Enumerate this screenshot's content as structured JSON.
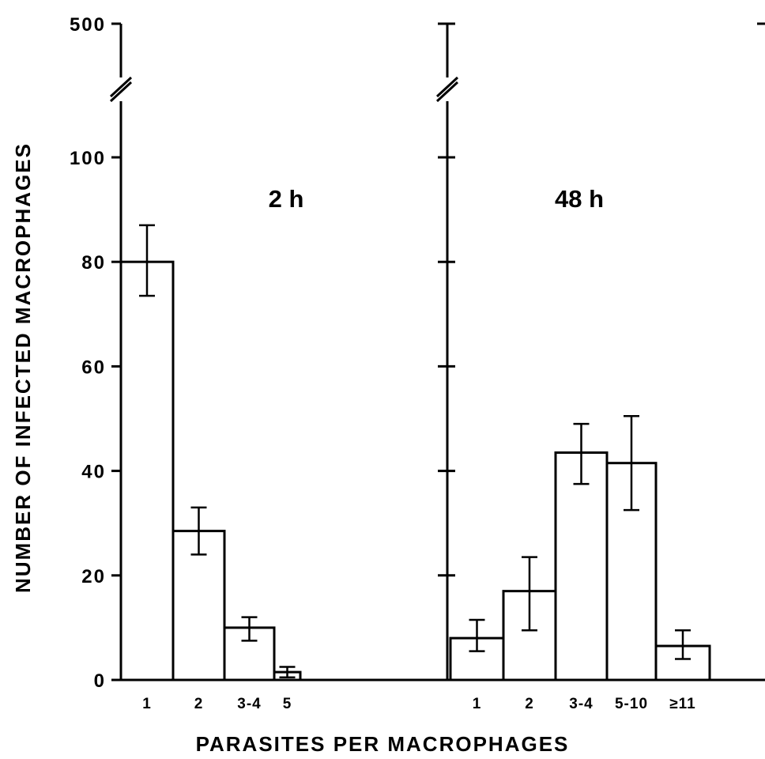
{
  "chart_data": {
    "type": "bar",
    "ylabel": "NUMBER OF INFECTED MACROPHAGES",
    "xlabel": "PARASITES PER MACROPHAGES",
    "ylim": [
      0,
      100
    ],
    "y_ticks": [
      "0",
      "20",
      "40",
      "60",
      "80",
      "100",
      "500"
    ],
    "y_axis_break": "between 100 and 500",
    "panels": [
      {
        "title": "2 h",
        "categories": [
          "1",
          "2",
          "3-4",
          "5"
        ],
        "values": [
          80,
          28.5,
          10,
          1.5
        ],
        "error_low": [
          73.5,
          24,
          7.5,
          0.5
        ],
        "error_high": [
          87,
          33,
          12,
          2.5
        ]
      },
      {
        "title": "48 h",
        "categories": [
          "1",
          "2",
          "3-4",
          "5-10",
          "≥11"
        ],
        "values": [
          8,
          17,
          43.5,
          41.5,
          6.5
        ],
        "error_low": [
          5.5,
          9.5,
          37.5,
          32.5,
          4
        ],
        "error_high": [
          11.5,
          23.5,
          49,
          50.5,
          9.5
        ]
      }
    ]
  }
}
